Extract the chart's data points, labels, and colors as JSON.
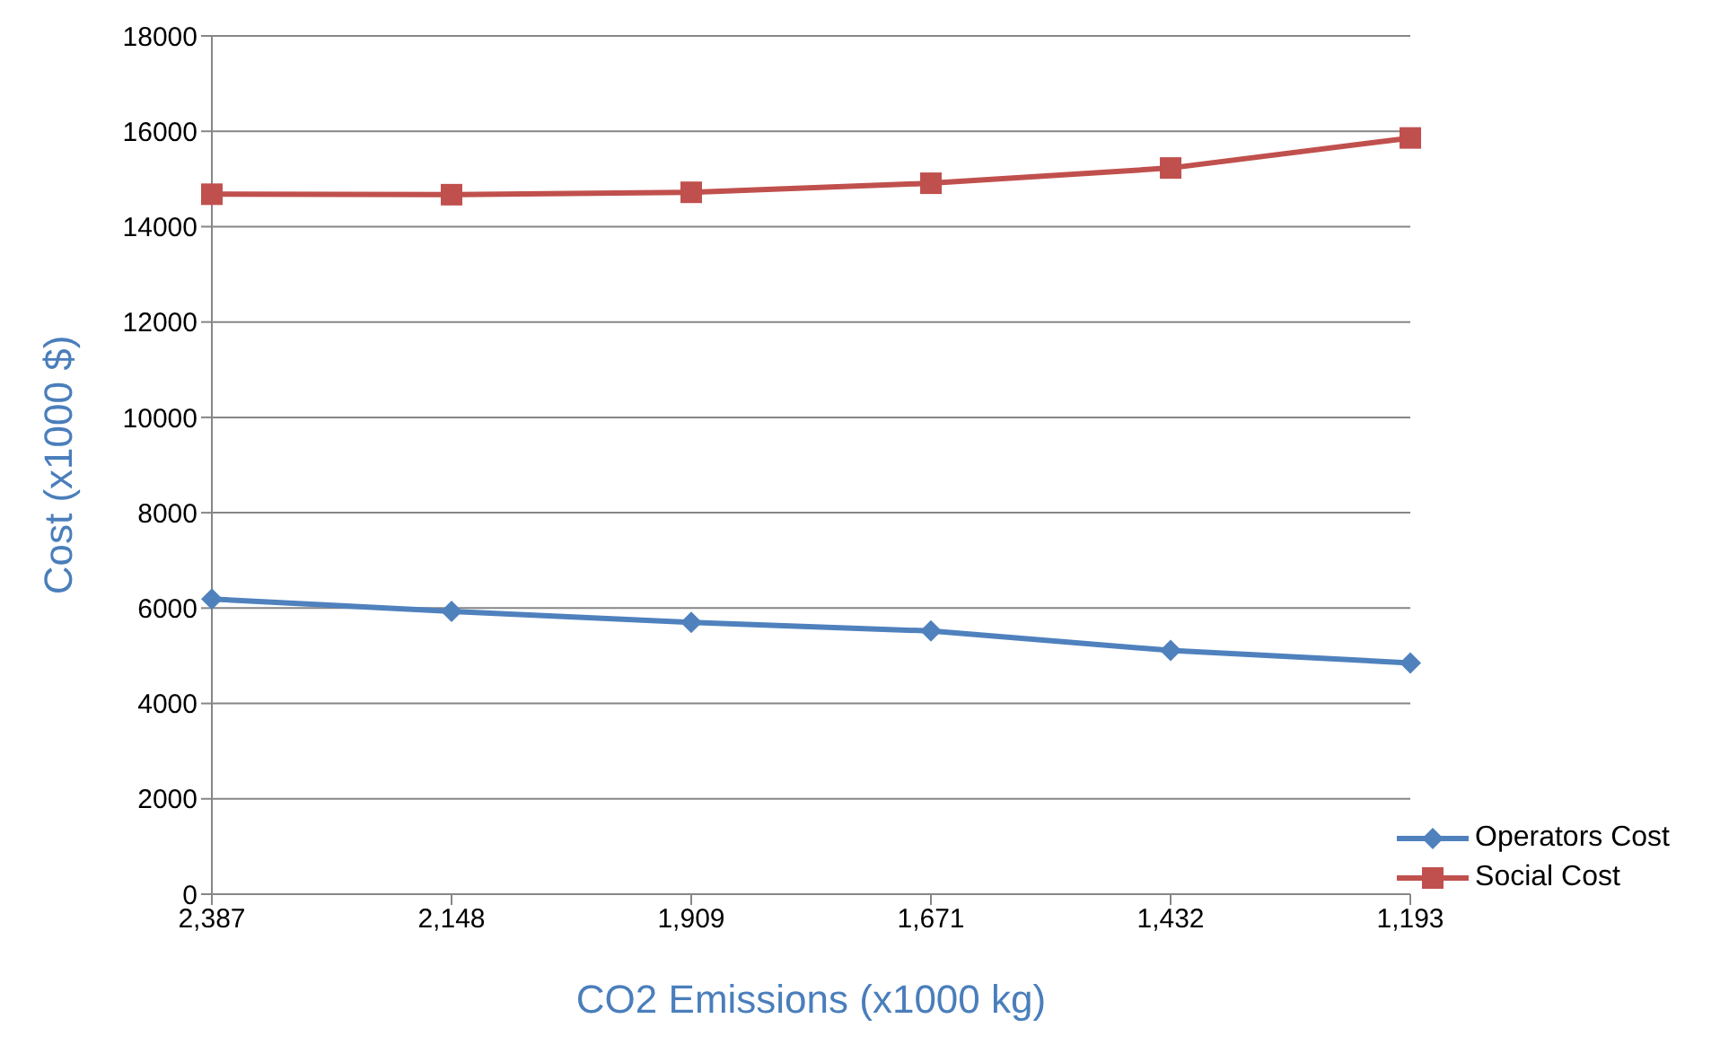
{
  "chart_data": {
    "type": "line",
    "xlabel": "CO2 Emissions (x1000 kg)",
    "ylabel": "Cost (x1000 $)",
    "categories": [
      "2,387",
      "2,148",
      "1,909",
      "1,671",
      "1,432",
      "1,193"
    ],
    "series": [
      {
        "name": "Operators Cost",
        "color": "#4f81bd",
        "marker": "diamond",
        "values": [
          6190,
          5930,
          5700,
          5520,
          5110,
          4850
        ]
      },
      {
        "name": "Social Cost",
        "color": "#c0504d",
        "marker": "square",
        "values": [
          14680,
          14670,
          14720,
          14910,
          15230,
          15860
        ]
      }
    ],
    "ylim": [
      0,
      18000
    ],
    "yticks": [
      0,
      2000,
      4000,
      6000,
      8000,
      10000,
      12000,
      14000,
      16000,
      18000
    ],
    "grid": "y",
    "legend": "bottom right",
    "line_style": "solid"
  }
}
